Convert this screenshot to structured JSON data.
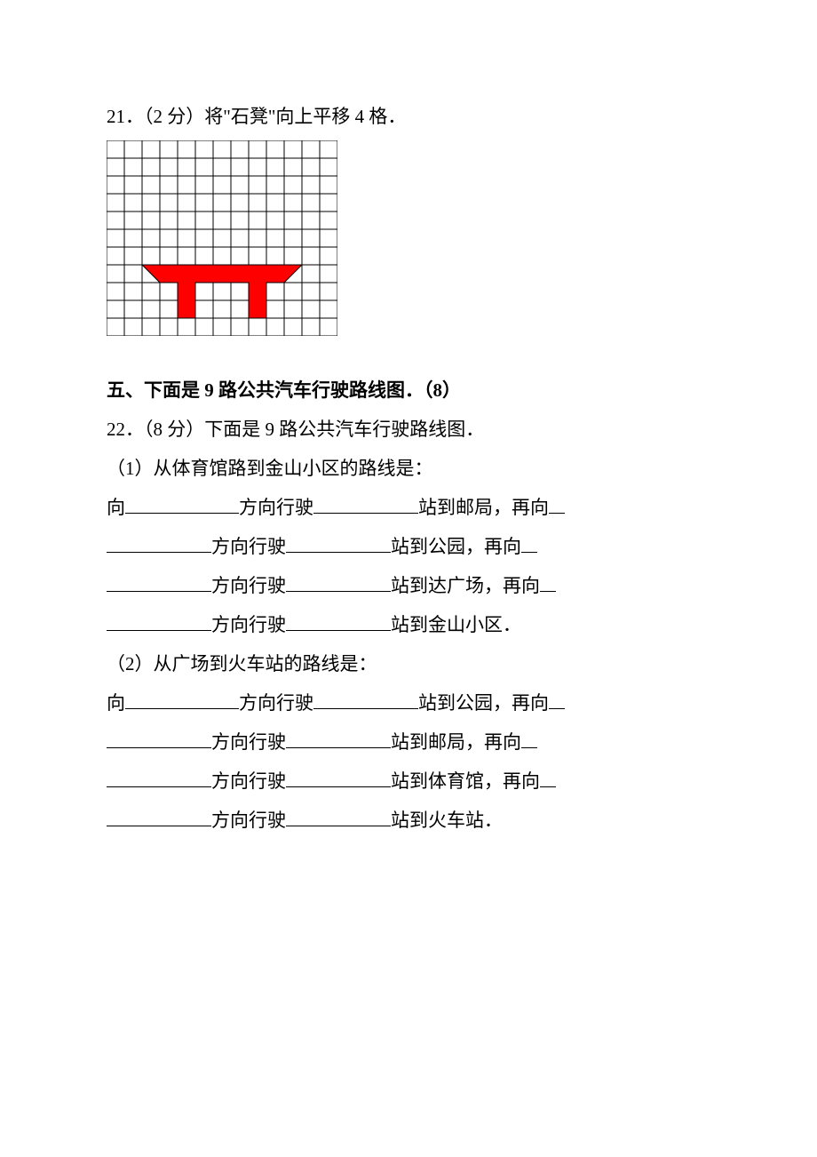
{
  "q21": {
    "text": "21．（2 分）将\"石凳\"向上平移 4 格．"
  },
  "sectionHeading": "五、下面是 9 路公共汽车行驶路线图．（8）",
  "q22": {
    "intro": "22．（8 分）下面是 9 路公共汽车行驶路线图．",
    "part1_label": "（1）从体育馆路到金山小区的路线是：",
    "p1_l1a": "向",
    "p1_l1b": "方向行驶",
    "p1_l1c": "站到邮局，再向",
    "p1_l2b": "方向行驶",
    "p1_l2c": "站到公园，再向",
    "p1_l3b": "方向行驶",
    "p1_l3c": "站到达广场，再向",
    "p1_l4b": "方向行驶",
    "p1_l4c": "站到金山小区．",
    "part2_label": "（2）从广场到火车站的路线是：",
    "p2_l1a": "向",
    "p2_l1b": "方向行驶",
    "p2_l1c": "站到公园，再向",
    "p2_l2b": "方向行驶",
    "p2_l2c": "站到邮局，再向",
    "p2_l3b": "方向行驶",
    "p2_l3c": "站到体育馆，再向",
    "p2_l4b": "方向行驶",
    "p2_l4c": "站到火车站．"
  },
  "grid": {
    "cols": 13,
    "rows": 11,
    "cell": 20,
    "line_color": "#000000",
    "bg_color": "#ffffff",
    "shape_color": "#fe0000",
    "shape_points": "40,140 220,140 200,160 180,160 180,200 160,200 160,160 100,160 100,200 80,200 80,160 60,160"
  },
  "blanks": {
    "long": 128,
    "mid": 118,
    "short": 18
  }
}
